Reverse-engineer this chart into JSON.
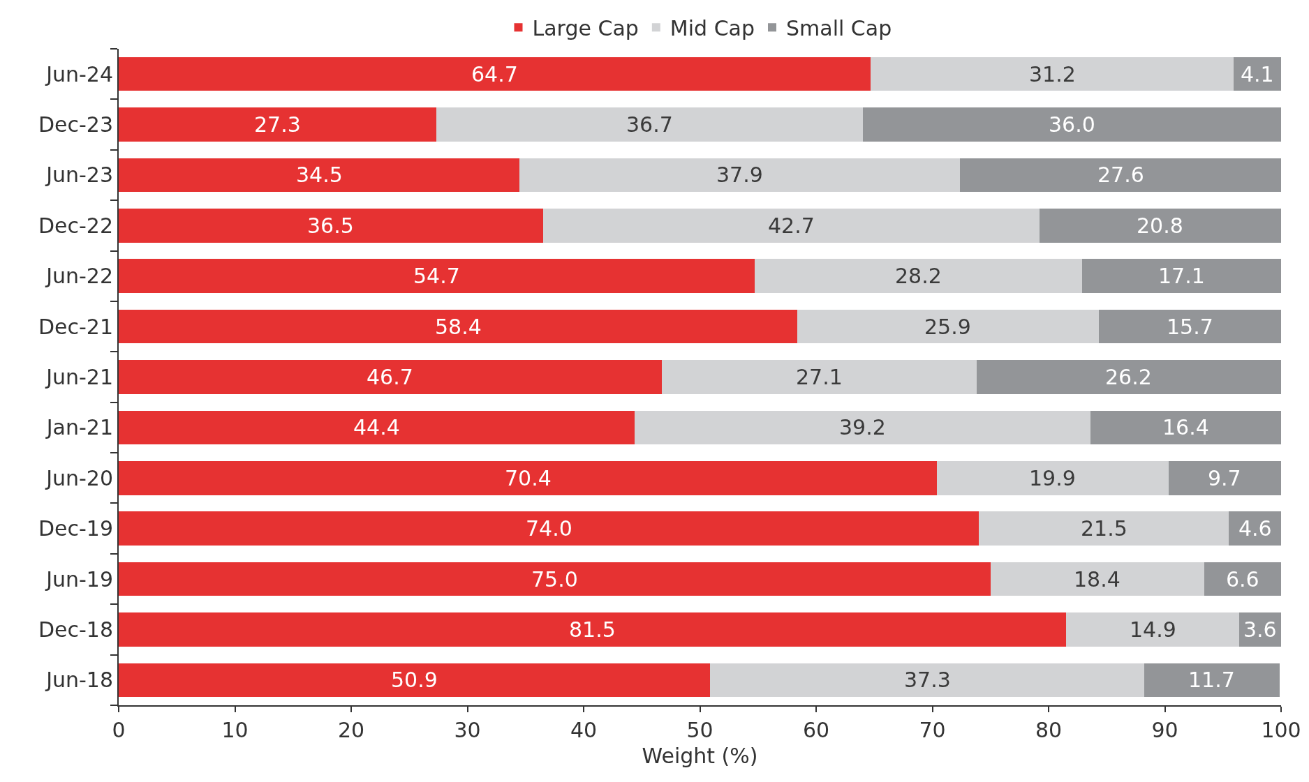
{
  "chart_data": {
    "type": "bar",
    "orientation": "horizontal",
    "stacked": true,
    "xlabel": "Weight (%)",
    "categories": [
      "Jun-24",
      "Dec-23",
      "Jun-23",
      "Dec-22",
      "Jun-22",
      "Dec-21",
      "Jun-21",
      "Jan-21",
      "Jun-20",
      "Dec-19",
      "Jun-19",
      "Dec-18",
      "Jun-18"
    ],
    "series": [
      {
        "name": "Large Cap",
        "color": "#e63232",
        "values": [
          64.7,
          27.3,
          34.5,
          36.5,
          54.7,
          58.4,
          46.7,
          44.4,
          70.4,
          74.0,
          75.0,
          81.5,
          50.9
        ],
        "value_labels": [
          "64.7",
          "27.3",
          "34.5",
          "36.5",
          "54.7",
          "58.4",
          "46.7",
          "44.4",
          "70.4",
          "74.0",
          "75.0",
          "81.5",
          "50.9"
        ]
      },
      {
        "name": "Mid Cap",
        "color": "#d2d3d5",
        "values": [
          31.2,
          36.7,
          37.9,
          42.7,
          28.2,
          25.9,
          27.1,
          39.2,
          19.9,
          21.5,
          18.4,
          14.9,
          37.3
        ],
        "value_labels": [
          "31.2",
          "36.7",
          "37.9",
          "42.7",
          "28.2",
          "25.9",
          "27.1",
          "39.2",
          "19.9",
          "21.5",
          "18.4",
          "14.9",
          "37.3"
        ]
      },
      {
        "name": "Small Cap",
        "color": "#939598",
        "values": [
          4.1,
          36.0,
          27.6,
          20.8,
          17.1,
          15.7,
          26.2,
          16.4,
          9.7,
          4.6,
          6.6,
          3.6,
          11.7
        ],
        "value_labels": [
          "4.1",
          "36.0",
          "27.6",
          "20.8",
          "17.1",
          "15.7",
          "26.2",
          "16.4",
          "9.7",
          "4.6",
          "6.6",
          "3.6",
          "11.7"
        ]
      }
    ],
    "xlim": [
      0,
      100
    ],
    "xticks": [
      0,
      10,
      20,
      30,
      40,
      50,
      60,
      70,
      80,
      90,
      100
    ],
    "grid": false,
    "legend": "top"
  }
}
